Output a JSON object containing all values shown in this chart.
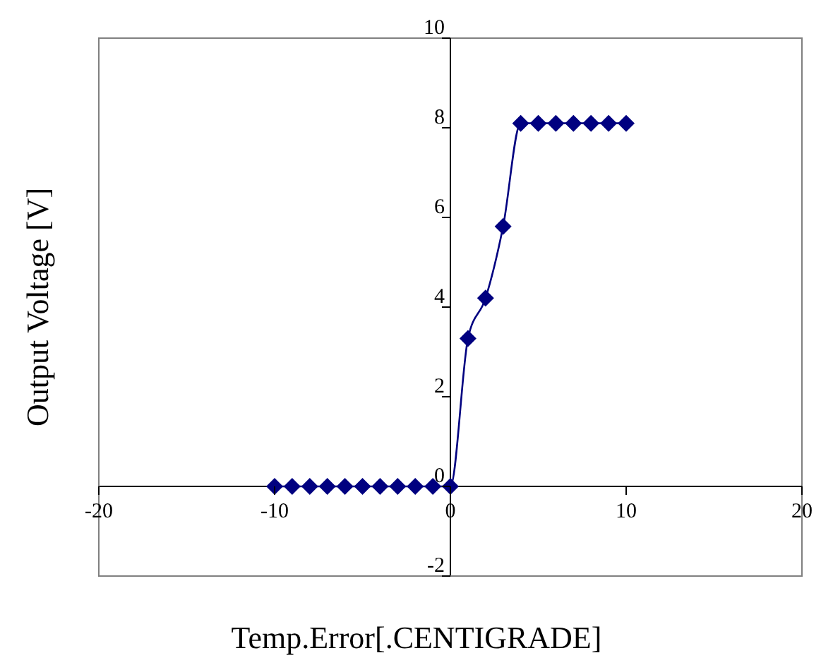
{
  "chart_data": {
    "type": "line",
    "xlabel": "Temp.Error[.CENTIGRADE]",
    "ylabel": "Output Voltage [V]",
    "x": [
      -10,
      -9,
      -8,
      -7,
      -6,
      -5,
      -4,
      -3,
      -2,
      -1,
      0,
      1,
      2,
      3,
      4,
      5,
      6,
      7,
      8,
      9,
      10
    ],
    "series": [
      {
        "color": "#000080",
        "values": [
          0,
          0,
          0,
          0,
          0,
          0,
          0,
          0,
          0,
          0,
          0,
          3.3,
          4.2,
          5.8,
          8.1,
          8.1,
          8.1,
          8.1,
          8.1,
          8.1,
          8.1
        ]
      }
    ],
    "xlim": [
      -20,
      20
    ],
    "ylim": [
      -2,
      10
    ],
    "xticks": [
      -20,
      -10,
      0,
      10,
      20
    ],
    "yticks": [
      -2,
      0,
      2,
      4,
      6,
      8,
      10
    ],
    "marker": "diamond",
    "line_style": "solid",
    "grid": false,
    "legend": false
  }
}
